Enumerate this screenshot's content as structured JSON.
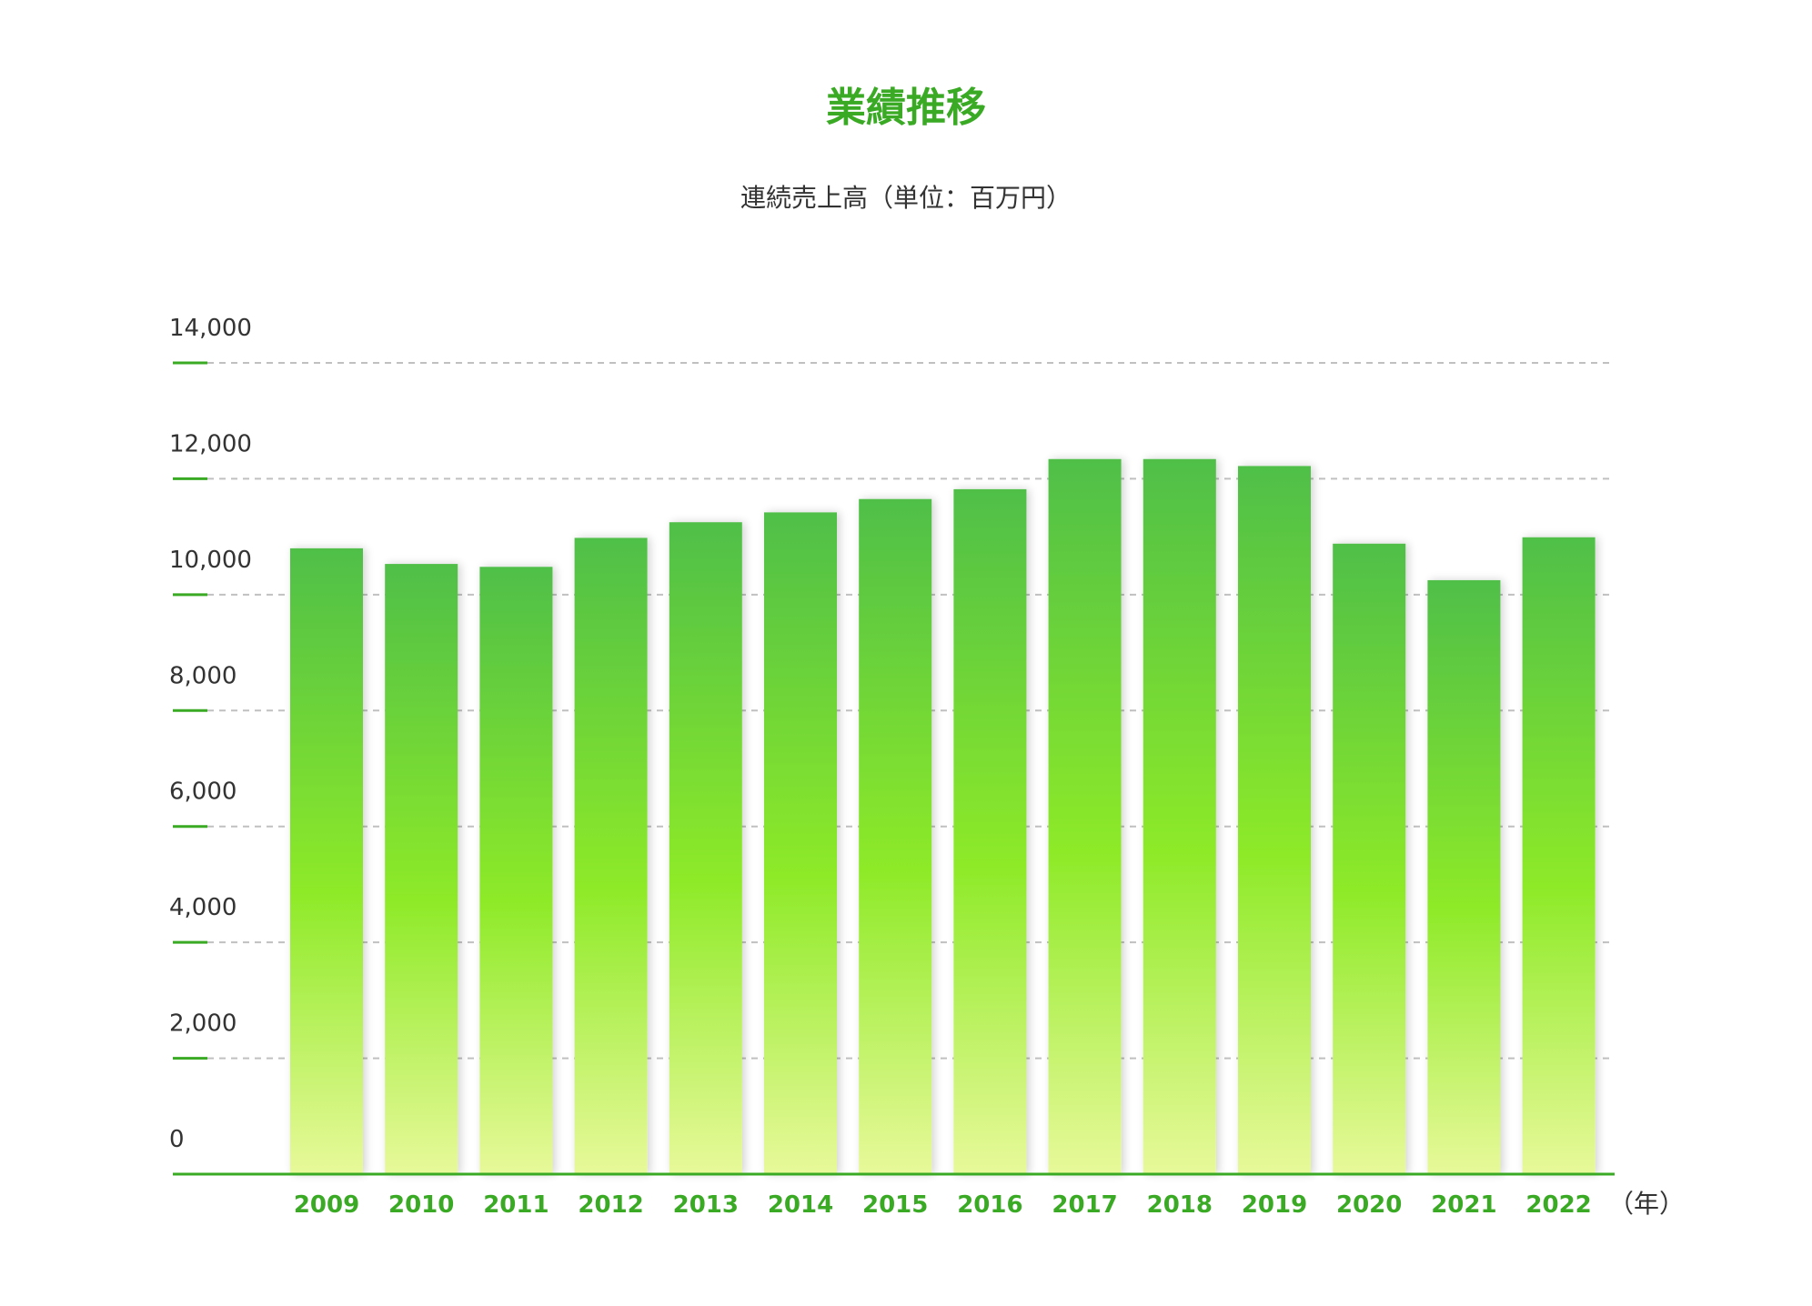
{
  "colors": {
    "accent": "#3aaa25",
    "bar_top": "#4fbf48",
    "bar_mid": "#8eea28",
    "bar_bottom": "#e8f99a",
    "grid": "#c0c0c0"
  },
  "chart_data": {
    "type": "bar",
    "title": "業績推移",
    "subtitle": "連続売上高（単位：百万円）",
    "x_unit": "（年）",
    "categories": [
      "2009",
      "2010",
      "2011",
      "2012",
      "2013",
      "2014",
      "2015",
      "2016",
      "2017",
      "2018",
      "2019",
      "2020",
      "2021",
      "2022"
    ],
    "values": [
      10800,
      10530,
      10480,
      10980,
      11250,
      11420,
      11650,
      11820,
      12340,
      12340,
      12220,
      10880,
      10250,
      10990
    ],
    "y_ticks": [
      0,
      2000,
      4000,
      6000,
      8000,
      10000,
      12000,
      14000
    ],
    "y_tick_labels": [
      "0",
      "2,000",
      "4,000",
      "6,000",
      "8,000",
      "10,000",
      "12,000",
      "14,000"
    ],
    "ylim": [
      0,
      14000
    ],
    "grid": true,
    "legend": "none"
  }
}
